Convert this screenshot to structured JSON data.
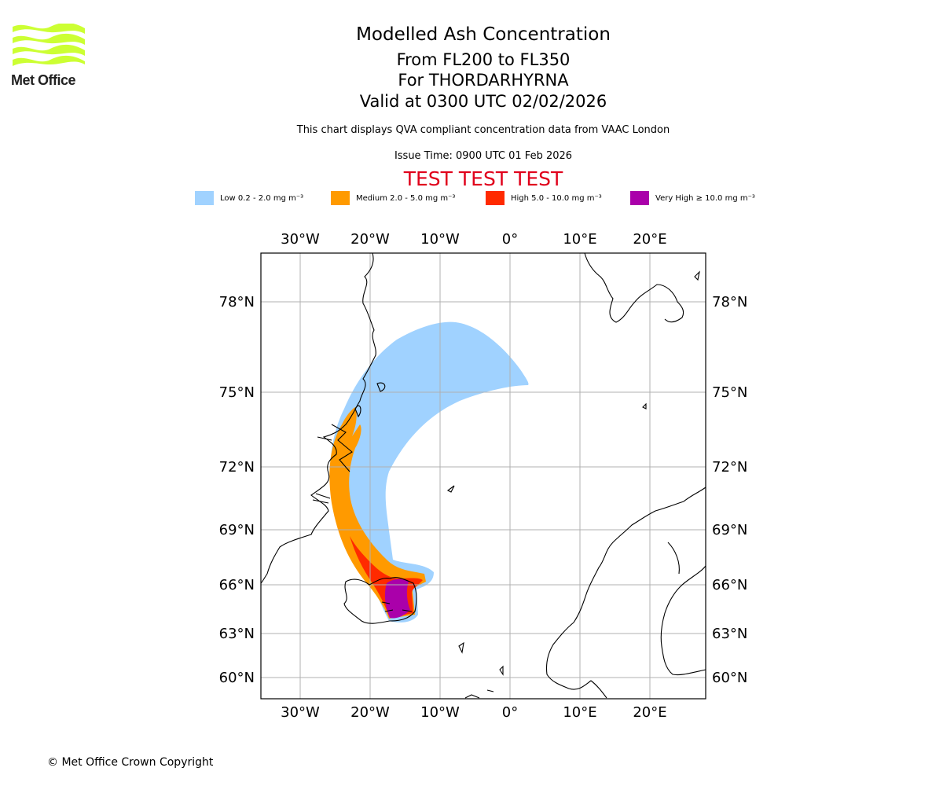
{
  "logo": {
    "text": "Met Office",
    "color": "#ccff33"
  },
  "title": {
    "main": "Modelled Ash Concentration",
    "levels": "From FL200 to FL350",
    "volcano": "For THORDARHYRNA",
    "valid": "Valid at 0300 UTC 02/02/2026",
    "description": "This chart displays QVA compliant concentration data from VAAC London",
    "issue": "Issue Time: 0900 UTC 01 Feb 2026",
    "test_banner": "TEST TEST TEST"
  },
  "legend": [
    {
      "label": "Low 0.2 - 2.0 mg m⁻³",
      "color": "#a0d2ff"
    },
    {
      "label": "Medium 2.0 - 5.0 mg m⁻³",
      "color": "#ff9a00"
    },
    {
      "label": "High 5.0 - 10.0 mg m⁻³",
      "color": "#ff2a00"
    },
    {
      "label": "Very High ≥ 10.0 mg m⁻³",
      "color": "#aa00aa"
    }
  ],
  "map": {
    "lon_ticks": [
      "30°W",
      "20°W",
      "10°W",
      "0°",
      "10°E",
      "20°E"
    ],
    "lat_ticks": [
      "78°N",
      "75°N",
      "72°N",
      "69°N",
      "66°N",
      "63°N",
      "60°N"
    ]
  },
  "footer": {
    "copyright": "© Met Office Crown Copyright"
  }
}
